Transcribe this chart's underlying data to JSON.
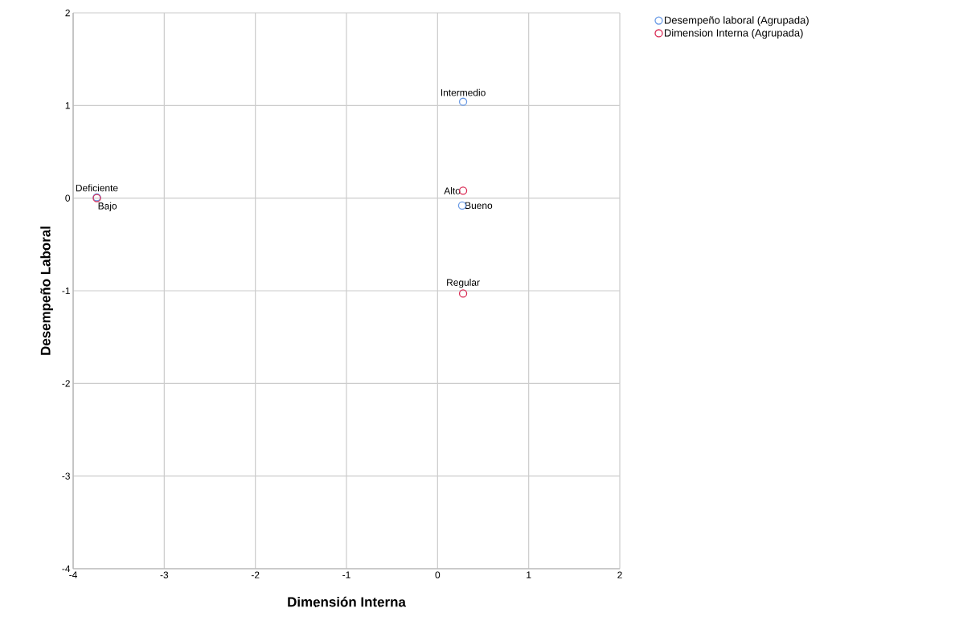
{
  "chart_data": {
    "type": "scatter",
    "xlabel": "Dimensión Interna",
    "ylabel": "Desempeño Laboral",
    "xlim": [
      -4,
      2
    ],
    "xticks": [
      -4,
      -3,
      -2,
      -1,
      0,
      1,
      2
    ],
    "ylim": [
      -4,
      2
    ],
    "yticks": [
      -4,
      -3,
      -2,
      -1,
      0,
      1,
      2
    ],
    "grid": true,
    "legend": "top right",
    "marker": "circle",
    "series": [
      {
        "name": "Desempeño laboral (Agrupada)",
        "color": "#6a9be6",
        "x": [
          0.28,
          0.27,
          -3.74
        ],
        "values": [
          1.04,
          -0.08,
          0.01
        ]
      },
      {
        "name": "Dimension Interna (Agrupada)",
        "color": "#d92b54",
        "x": [
          -3.74,
          0.28,
          0.28
        ],
        "values": [
          0.0,
          0.08,
          -1.03
        ]
      }
    ],
    "annotations": [
      {
        "text": "Intermedio",
        "x": 0.28,
        "y": 1.04
      },
      {
        "text": "Bueno",
        "x": 0.27,
        "y": -0.08
      },
      {
        "text": "Deficiente",
        "x": -3.74,
        "y": 0.01
      },
      {
        "text": "Bajo",
        "x": -3.74,
        "y": 0.0
      },
      {
        "text": "Alto",
        "x": 0.28,
        "y": 0.08
      },
      {
        "text": "Regular",
        "x": 0.28,
        "y": -1.03
      }
    ]
  }
}
